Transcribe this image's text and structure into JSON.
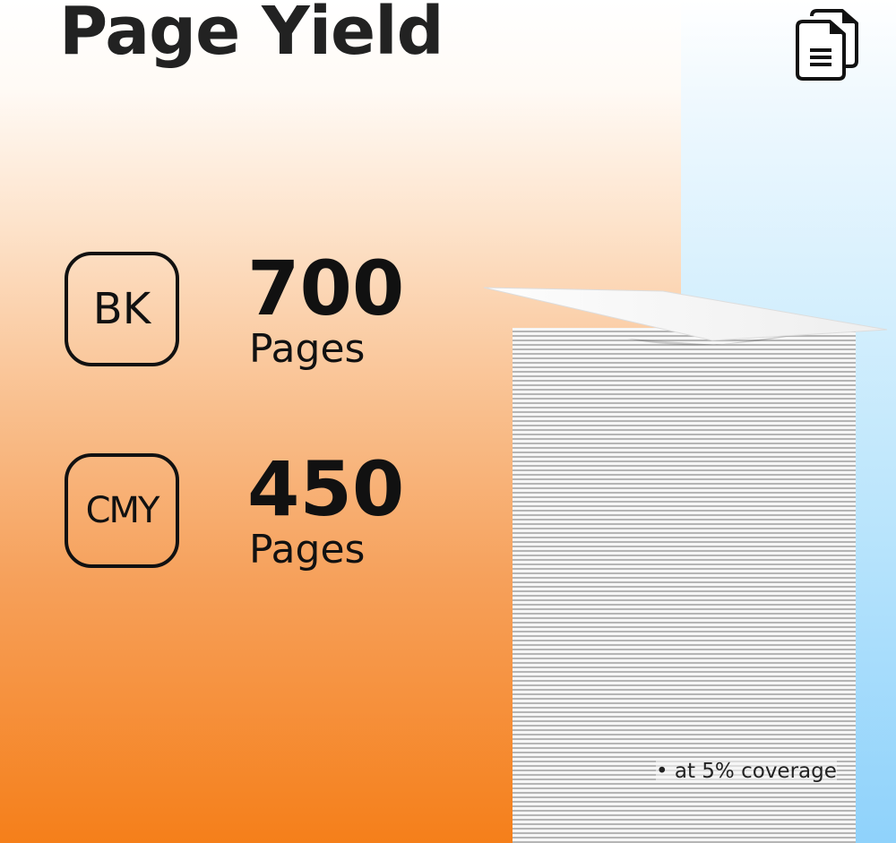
{
  "title": "Page Yield",
  "icon": "documents-icon",
  "yields": [
    {
      "badge": "BK",
      "count": "700",
      "unit": "Pages"
    },
    {
      "badge": "CMY",
      "count": "450",
      "unit": "Pages"
    }
  ],
  "note": "• at 5% coverage",
  "colors": {
    "orange": "#f57f1a",
    "blue": "#8fd2fb",
    "text": "#111111"
  }
}
